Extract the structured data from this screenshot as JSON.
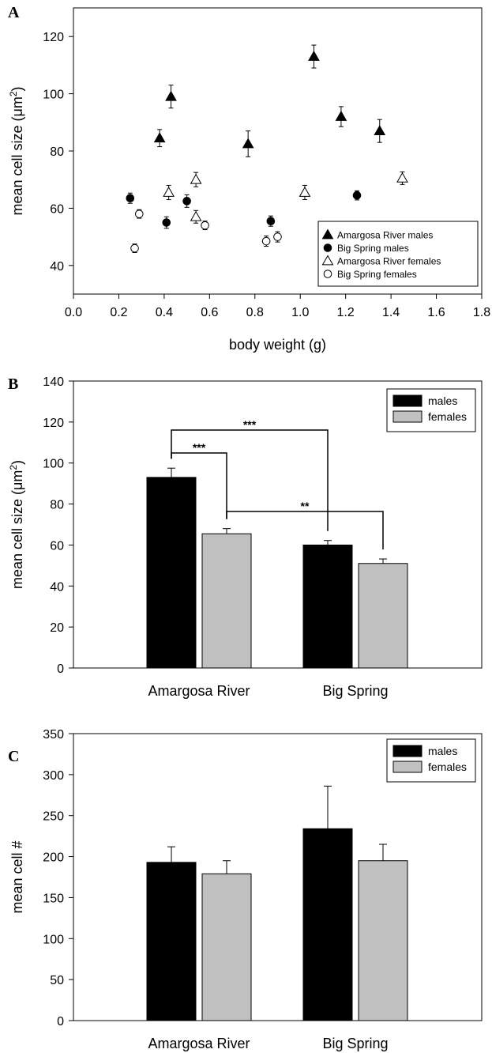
{
  "chart_data": [
    {
      "panel": "A",
      "type": "scatter",
      "xlabel": "body weight (g)",
      "ylabel": "mean cell size (μm2)",
      "xlim": [
        0,
        1.8
      ],
      "ylim": [
        30,
        130
      ],
      "xticks": [
        "0.0",
        "0.2",
        "0.4",
        "0.6",
        "0.8",
        "1.0",
        "1.2",
        "1.4",
        "1.6",
        "1.8"
      ],
      "yticks": [
        "40",
        "60",
        "80",
        "100",
        "120"
      ],
      "legend_position": "bottom-right",
      "series": [
        {
          "name": "Amargosa River males",
          "marker": "filled-triangle",
          "points": [
            {
              "x": 0.38,
              "y": 84.5,
              "err": 3
            },
            {
              "x": 0.43,
              "y": 99,
              "err": 4
            },
            {
              "x": 0.77,
              "y": 82.5,
              "err": 4.5
            },
            {
              "x": 1.06,
              "y": 113,
              "err": 4
            },
            {
              "x": 1.18,
              "y": 92,
              "err": 3.5
            },
            {
              "x": 1.35,
              "y": 87,
              "err": 4
            }
          ]
        },
        {
          "name": "Big Spring males",
          "marker": "filled-circle",
          "points": [
            {
              "x": 0.25,
              "y": 63.5,
              "err": 1.8
            },
            {
              "x": 0.41,
              "y": 55,
              "err": 2
            },
            {
              "x": 0.5,
              "y": 62.5,
              "err": 2.2
            },
            {
              "x": 0.87,
              "y": 55.5,
              "err": 1.8
            },
            {
              "x": 1.25,
              "y": 64.5,
              "err": 1.6
            }
          ]
        },
        {
          "name": "Amargosa River females",
          "marker": "open-triangle",
          "points": [
            {
              "x": 0.42,
              "y": 65.5,
              "err": 2.5
            },
            {
              "x": 0.54,
              "y": 70,
              "err": 2.5
            },
            {
              "x": 0.54,
              "y": 57,
              "err": 2.2
            },
            {
              "x": 1.02,
              "y": 65.5,
              "err": 2.5
            },
            {
              "x": 1.45,
              "y": 70.5,
              "err": 2.2
            }
          ]
        },
        {
          "name": "Big Spring females",
          "marker": "open-circle",
          "points": [
            {
              "x": 0.27,
              "y": 46,
              "err": 1.5
            },
            {
              "x": 0.29,
              "y": 58,
              "err": 1.5
            },
            {
              "x": 0.58,
              "y": 54,
              "err": 1.5
            },
            {
              "x": 0.85,
              "y": 48.5,
              "err": 1.8
            },
            {
              "x": 0.9,
              "y": 50,
              "err": 1.8
            }
          ]
        }
      ]
    },
    {
      "panel": "B",
      "type": "bar",
      "ylabel": "mean cell size (μm2)",
      "ylim": [
        0,
        140
      ],
      "yticks": [
        "0",
        "20",
        "40",
        "60",
        "80",
        "100",
        "120",
        "140"
      ],
      "categories": [
        "Amargosa River",
        "Big Spring"
      ],
      "legend_position": "top-right",
      "series": [
        {
          "name": "males",
          "color": "#000000",
          "values": [
            93,
            60
          ],
          "errors": [
            4.5,
            2.2
          ]
        },
        {
          "name": "females",
          "color": "#c0c0c0",
          "values": [
            65.5,
            51
          ],
          "errors": [
            2.5,
            2.2
          ]
        }
      ],
      "significance": [
        {
          "label": "***",
          "between": [
            "Amargosa River males",
            "Big Spring males"
          ]
        },
        {
          "label": "***",
          "between": [
            "Amargosa River males",
            "Amargosa River females"
          ]
        },
        {
          "label": "**",
          "between": [
            "Amargosa River females",
            "Big Spring females"
          ]
        }
      ]
    },
    {
      "panel": "C",
      "type": "bar",
      "ylabel": "mean cell #",
      "ylim": [
        0,
        350
      ],
      "yticks": [
        "0",
        "50",
        "100",
        "150",
        "200",
        "250",
        "300",
        "350"
      ],
      "categories": [
        "Amargosa River",
        "Big Spring"
      ],
      "legend_position": "top-right",
      "series": [
        {
          "name": "males",
          "color": "#000000",
          "values": [
            193,
            234
          ],
          "errors": [
            19,
            52
          ]
        },
        {
          "name": "females",
          "color": "#c0c0c0",
          "values": [
            179,
            195
          ],
          "errors": [
            16,
            20
          ]
        }
      ]
    }
  ]
}
